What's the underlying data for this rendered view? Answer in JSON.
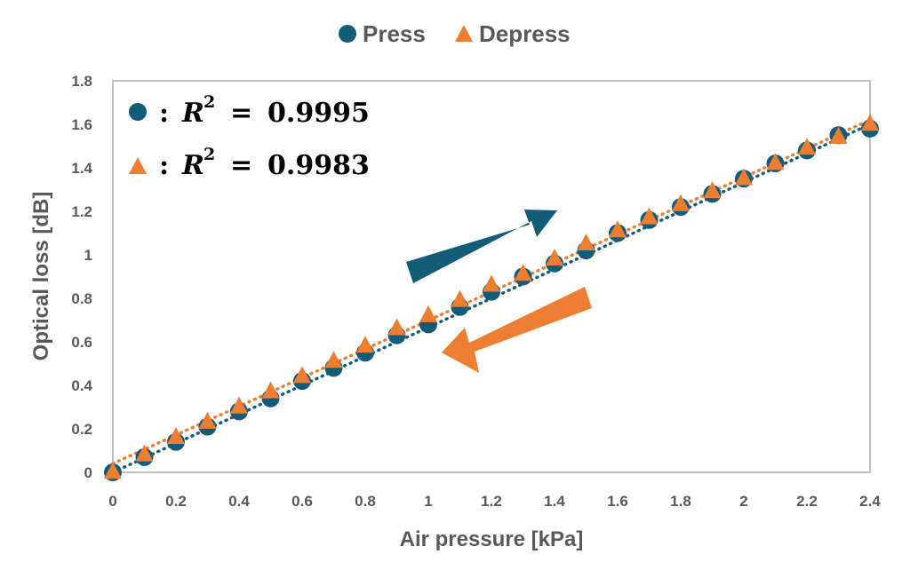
{
  "chart_data": {
    "type": "scatter",
    "title": "",
    "xlabel": "Air pressure [kPa]",
    "ylabel": "Optical loss [dB]",
    "xlim": [
      0,
      2.4
    ],
    "ylim": [
      0,
      1.8
    ],
    "xticks": [
      0,
      0.2,
      0.4,
      0.6,
      0.8,
      1,
      1.2,
      1.4,
      1.6,
      1.8,
      2,
      2.2,
      2.4
    ],
    "xtick_labels": [
      "0",
      "0.2",
      "0.4",
      "0.6",
      "0.8",
      "1",
      "1.2",
      "1.4",
      "1.6",
      "1.8",
      "2",
      "2.2",
      "2.4"
    ],
    "yticks": [
      0,
      0.2,
      0.4,
      0.6,
      0.8,
      1,
      1.2,
      1.4,
      1.6,
      1.8
    ],
    "ytick_labels": [
      "0",
      "0.2",
      "0.4",
      "0.6",
      "0.8",
      "1",
      "1.2",
      "1.4",
      "1.6",
      "1.8"
    ],
    "grid": false,
    "legend_position": "top-center",
    "series": [
      {
        "name": "Press",
        "marker": "circle",
        "color": "#125c7a",
        "x": [
          0,
          0.1,
          0.2,
          0.3,
          0.4,
          0.5,
          0.6,
          0.7,
          0.8,
          0.9,
          1.0,
          1.1,
          1.2,
          1.3,
          1.4,
          1.5,
          1.6,
          1.7,
          1.8,
          1.9,
          2.0,
          2.1,
          2.2,
          2.3,
          2.4
        ],
        "y": [
          0.0,
          0.07,
          0.14,
          0.21,
          0.28,
          0.34,
          0.42,
          0.48,
          0.55,
          0.63,
          0.68,
          0.76,
          0.83,
          0.9,
          0.96,
          1.02,
          1.1,
          1.16,
          1.22,
          1.28,
          1.35,
          1.42,
          1.48,
          1.55,
          1.58
        ],
        "trendline": {
          "style": "dotted",
          "from": [
            0,
            0.0
          ],
          "to": [
            2.4,
            1.6
          ]
        }
      },
      {
        "name": "Depress",
        "marker": "triangle",
        "color": "#ed7d31",
        "x": [
          0,
          0.1,
          0.2,
          0.3,
          0.4,
          0.5,
          0.6,
          0.7,
          0.8,
          0.9,
          1.0,
          1.1,
          1.2,
          1.3,
          1.4,
          1.5,
          1.6,
          1.7,
          1.8,
          1.9,
          2.0,
          2.1,
          2.2,
          2.3,
          2.4
        ],
        "y": [
          0.0,
          0.08,
          0.16,
          0.23,
          0.3,
          0.37,
          0.44,
          0.51,
          0.58,
          0.66,
          0.72,
          0.79,
          0.86,
          0.91,
          0.98,
          1.05,
          1.11,
          1.17,
          1.23,
          1.29,
          1.35,
          1.42,
          1.49,
          1.54,
          1.6
        ],
        "trendline": {
          "style": "dotted",
          "from": [
            0,
            0.04
          ],
          "to": [
            2.4,
            1.62
          ]
        }
      }
    ],
    "annotations": [
      {
        "marker": "circle",
        "series": "Press",
        "colon": ":",
        "label": "R",
        "exponent": "2",
        "equals": "=",
        "value": "0.9995"
      },
      {
        "marker": "triangle",
        "series": "Depress",
        "colon": ":",
        "label": "R",
        "exponent": "2",
        "equals": "=",
        "value": "0.9983"
      }
    ],
    "arrows": [
      {
        "name": "press-direction",
        "color": "#125c7a",
        "direction": "up-right"
      },
      {
        "name": "depress-direction",
        "color": "#ed7d31",
        "direction": "down-left"
      }
    ]
  },
  "colors": {
    "axis_text": "#595959",
    "frame": "#bfbfbf",
    "press": "#125c7a",
    "depress": "#ed7d31"
  }
}
